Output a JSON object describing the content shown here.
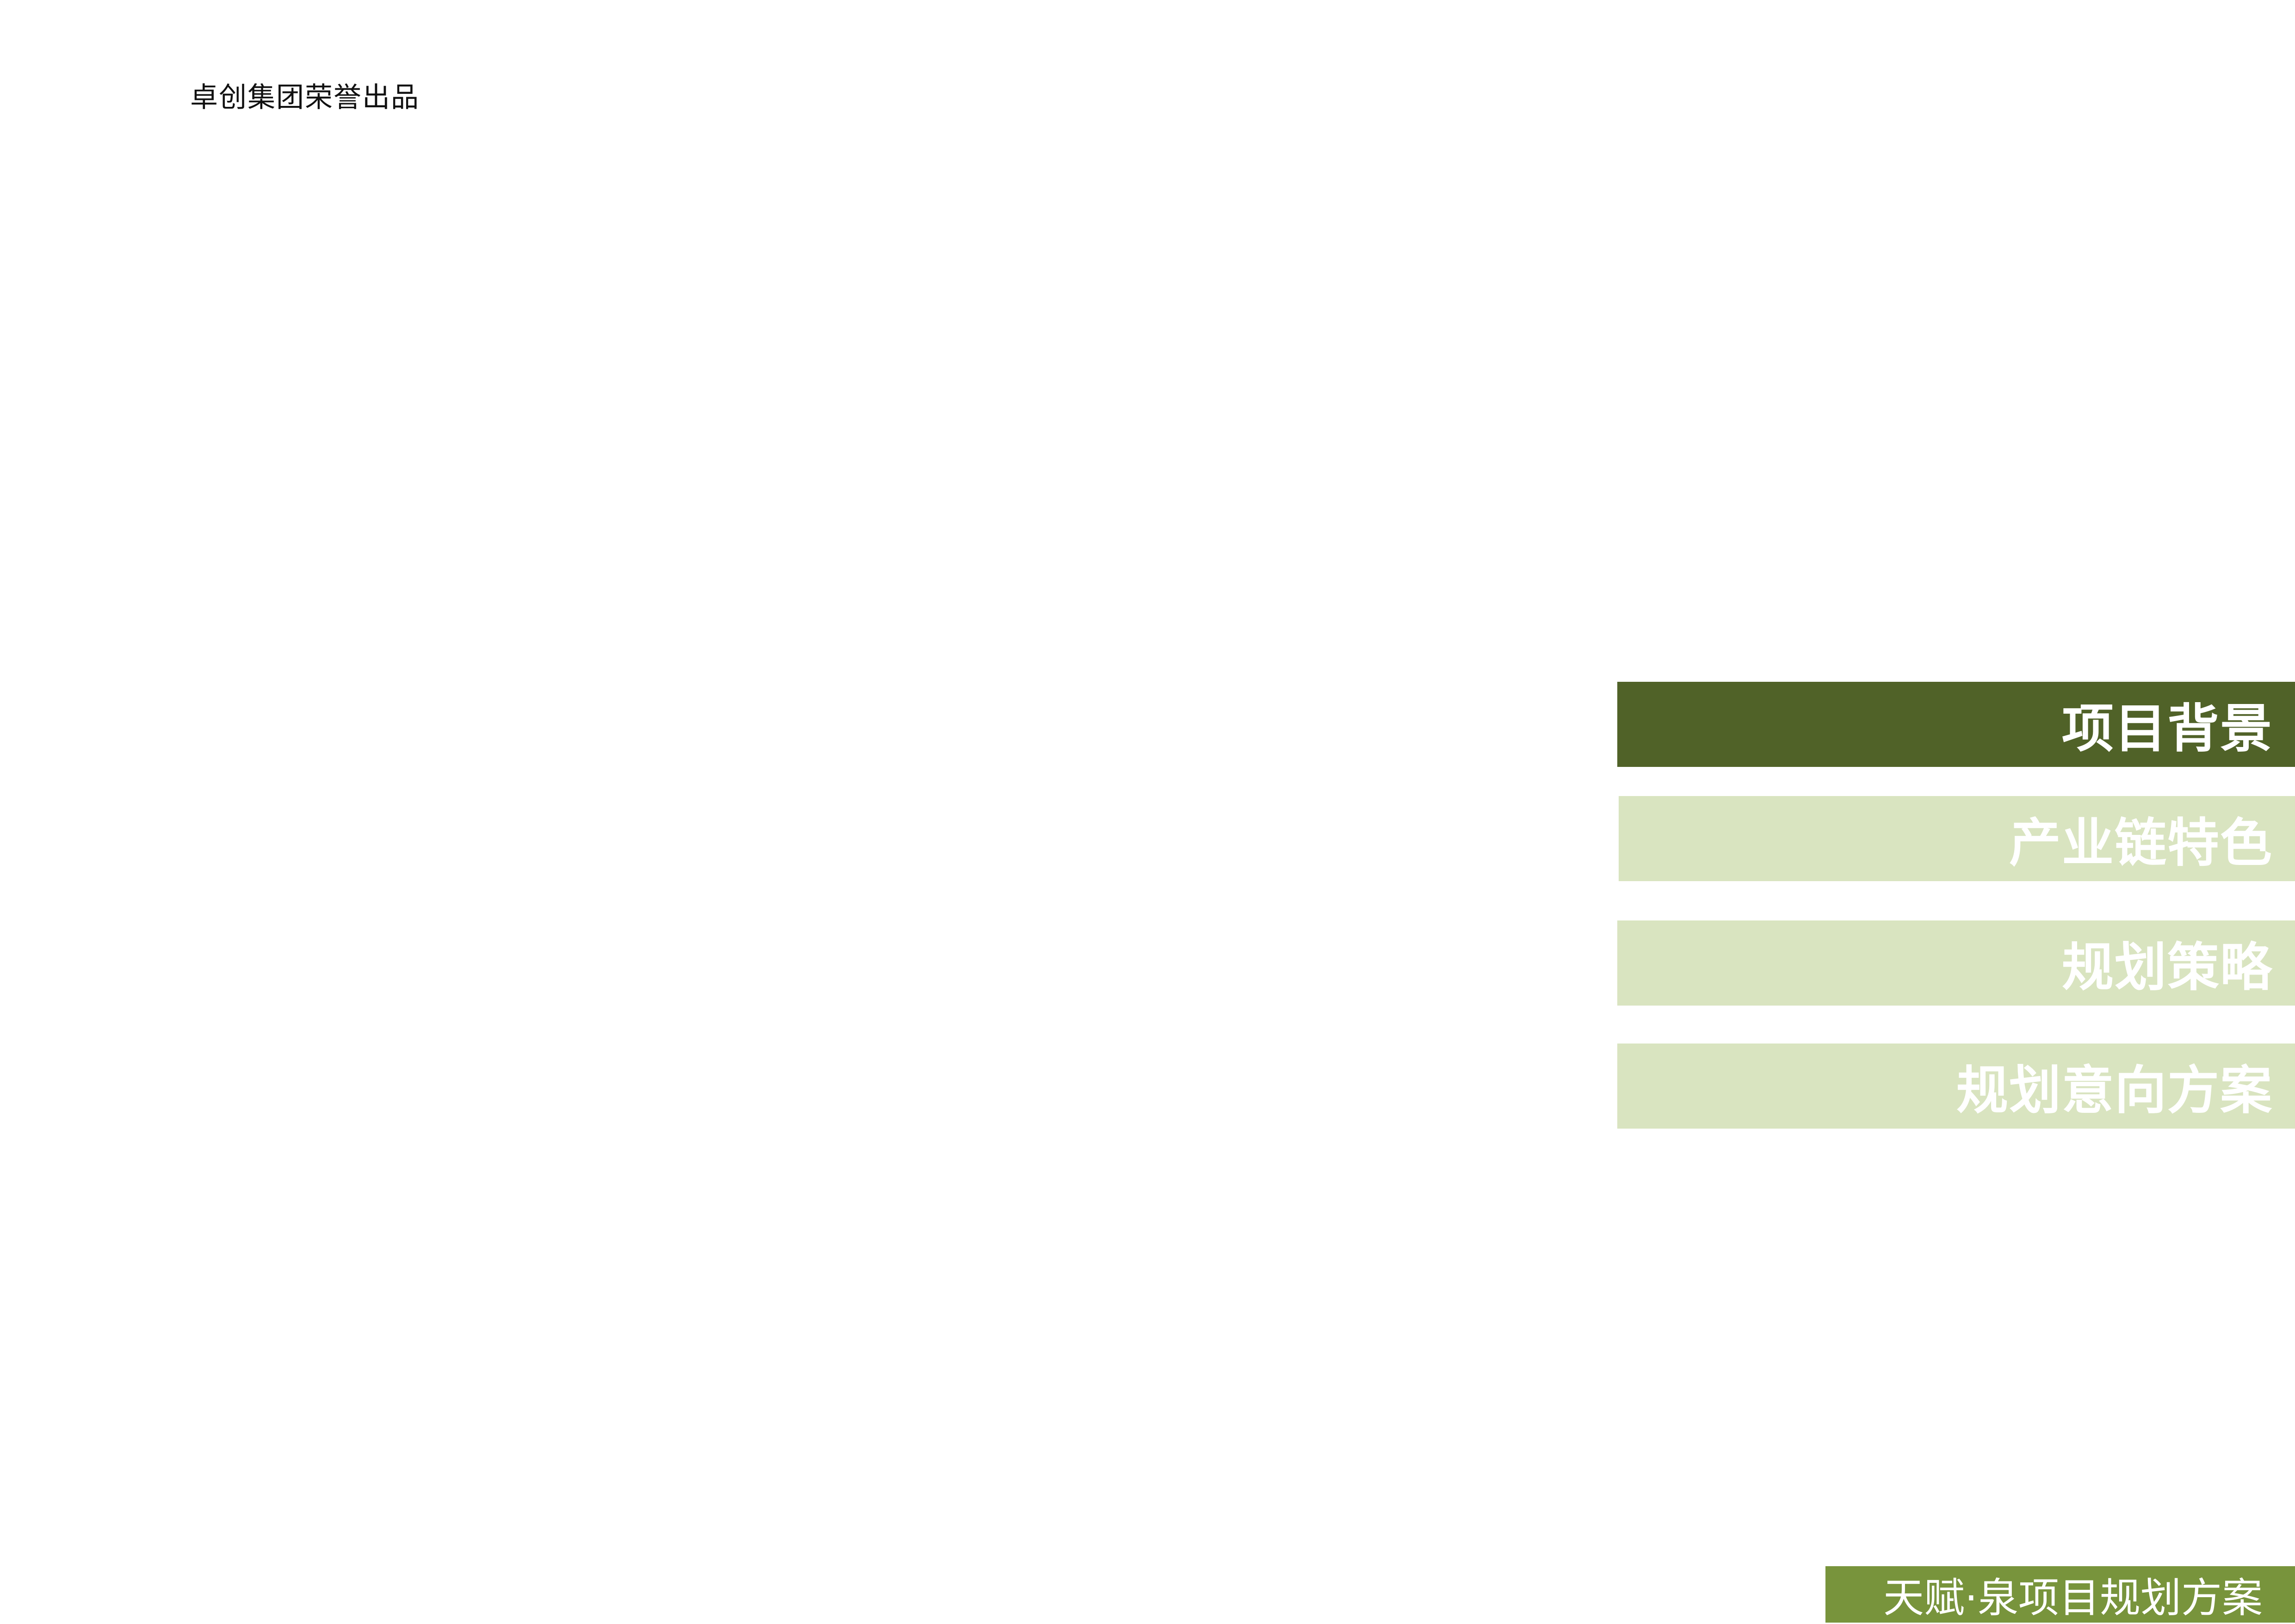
{
  "header": {
    "credit": "卓创集团荣誉出品"
  },
  "nav": {
    "items": [
      {
        "label": "项目背景",
        "active": true
      },
      {
        "label": "产业链特色",
        "active": false
      },
      {
        "label": "规划策略",
        "active": false
      },
      {
        "label": "规划意向方案",
        "active": false
      }
    ]
  },
  "footer": {
    "title": "天赋·泉项目规划方案"
  },
  "colors": {
    "active": "#506228",
    "inactive": "#d9e4c0",
    "footer": "#78943c"
  }
}
